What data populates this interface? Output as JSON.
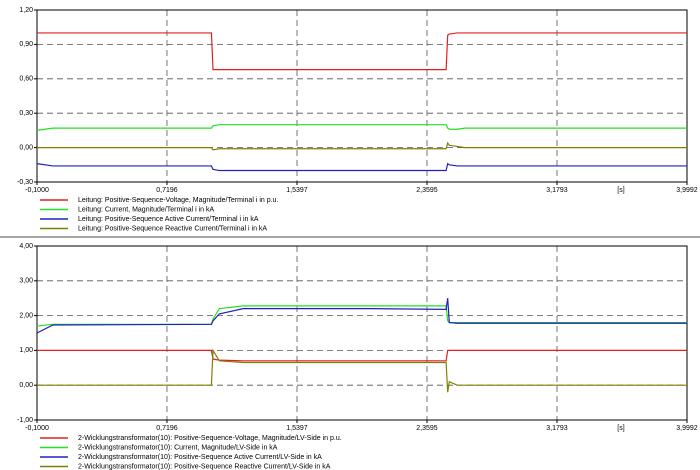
{
  "chart_data": [
    {
      "type": "line",
      "x_label": "[s]",
      "xlim": [
        -0.1,
        3.9992
      ],
      "xticks": [
        {
          "value": -0.1,
          "label": "-0,1000"
        },
        {
          "value": 0.7196,
          "label": "0,7196"
        },
        {
          "value": 1.5397,
          "label": "1,5397"
        },
        {
          "value": 2.3595,
          "label": "2,3595"
        },
        {
          "value": 3.1793,
          "label": "3,1793"
        },
        {
          "value": 3.9992,
          "label": "3,9992"
        }
      ],
      "ylim": [
        -0.3,
        1.2
      ],
      "yticks": [
        {
          "value": -0.3,
          "label": "-0,30"
        },
        {
          "value": 0,
          "label": "0,00"
        },
        {
          "value": 0.3,
          "label": "0,30"
        },
        {
          "value": 0.6,
          "label": "0,60"
        },
        {
          "value": 0.9,
          "label": "0,90"
        },
        {
          "value": 1.2,
          "label": "1,20"
        }
      ],
      "grid": true,
      "x": [
        -0.1,
        0.0,
        1.0,
        1.01,
        1.05,
        1.2,
        2.0,
        2.48,
        2.49,
        2.5,
        2.55,
        2.6,
        3.0,
        3.9992
      ],
      "series": [
        {
          "name": "Leitung: Positive-Sequence-Voltage, Magnitude/Terminal i in p.u.",
          "color": "#e02020",
          "values": [
            1.0,
            1.0,
            1.0,
            0.68,
            0.68,
            0.68,
            0.68,
            0.68,
            0.98,
            0.99,
            1.0,
            1.0,
            1.0,
            1.0
          ]
        },
        {
          "name": "Leitung: Current, Magnitude/Terminal i in kA",
          "color": "#22e022",
          "values": [
            0.15,
            0.17,
            0.17,
            0.19,
            0.2,
            0.2,
            0.2,
            0.2,
            0.17,
            0.16,
            0.16,
            0.17,
            0.17,
            0.17
          ]
        },
        {
          "name": "Leitung: Positive-Sequence Active Current/Terminal i in kA",
          "color": "#2020c0",
          "values": [
            -0.14,
            -0.16,
            -0.16,
            -0.19,
            -0.2,
            -0.2,
            -0.2,
            -0.2,
            -0.14,
            -0.15,
            -0.16,
            -0.16,
            -0.16,
            -0.16
          ]
        },
        {
          "name": "Leitung: Positive-Sequence Reactive Current/Terminal i in kA",
          "color": "#808000",
          "values": [
            0.0,
            0.0,
            0.0,
            -0.02,
            -0.01,
            -0.01,
            -0.01,
            -0.01,
            0.04,
            0.02,
            0.01,
            0.0,
            0.0,
            0.0
          ]
        }
      ]
    },
    {
      "type": "line",
      "x_label": "[s]",
      "xlim": [
        -0.1,
        3.9992
      ],
      "xticks": [
        {
          "value": -0.1,
          "label": "-0,1000"
        },
        {
          "value": 0.7196,
          "label": "0,7196"
        },
        {
          "value": 1.5397,
          "label": "1,5397"
        },
        {
          "value": 2.3595,
          "label": "2,3595"
        },
        {
          "value": 3.1793,
          "label": "3,1793"
        },
        {
          "value": 3.9992,
          "label": "3,9992"
        }
      ],
      "ylim": [
        -1,
        4
      ],
      "yticks": [
        {
          "value": -1,
          "label": "-1,00"
        },
        {
          "value": 0,
          "label": "0,00"
        },
        {
          "value": 1,
          "label": "1,00"
        },
        {
          "value": 2,
          "label": "2,00"
        },
        {
          "value": 3,
          "label": "3,00"
        },
        {
          "value": 4,
          "label": "4,00"
        }
      ],
      "grid": true,
      "x": [
        -0.1,
        0.0,
        1.0,
        1.01,
        1.05,
        1.2,
        2.0,
        2.48,
        2.49,
        2.5,
        2.55,
        2.6,
        3.0,
        3.9992
      ],
      "series": [
        {
          "name": "2-Wicklungstransformator(10): Positive-Sequence-Voltage, Magnitude/LV-Side in p.u.",
          "color": "#e02020",
          "values": [
            1.0,
            1.0,
            1.0,
            0.75,
            0.72,
            0.7,
            0.7,
            0.7,
            1.0,
            1.0,
            1.0,
            1.0,
            1.0,
            1.0
          ]
        },
        {
          "name": "2-Wicklungstransformator(10): Current, Magnitude/LV-Side in kA",
          "color": "#22e022",
          "values": [
            1.7,
            1.75,
            1.75,
            1.9,
            2.2,
            2.28,
            2.28,
            2.28,
            1.85,
            1.8,
            1.8,
            1.8,
            1.8,
            1.8
          ]
        },
        {
          "name": "2-Wicklungstransformator(10): Positive-Sequence Active Current/LV-Side in kA",
          "color": "#2020c0",
          "values": [
            1.5,
            1.73,
            1.75,
            1.85,
            2.05,
            2.2,
            2.2,
            2.18,
            2.5,
            1.8,
            1.78,
            1.78,
            1.78,
            1.78
          ]
        },
        {
          "name": "2-Wicklungstransformator(10): Positive-Sequence Reactive Current/LV-Side in kA",
          "color": "#808000",
          "values": [
            0.0,
            0.0,
            0.0,
            1.0,
            0.7,
            0.65,
            0.65,
            0.65,
            -0.2,
            0.1,
            0.0,
            0.0,
            0.0,
            0.0
          ]
        }
      ]
    }
  ]
}
